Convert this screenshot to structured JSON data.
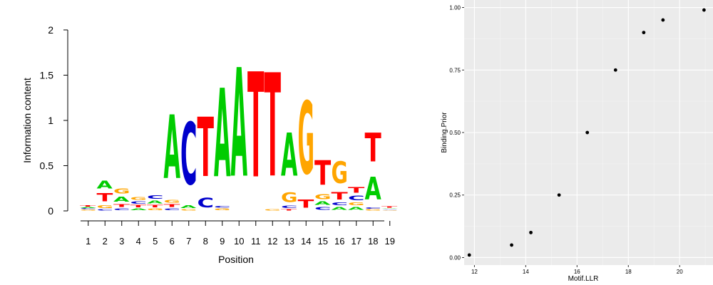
{
  "chart_data": [
    {
      "type": "sequence-logo",
      "xlabel": "Position",
      "ylabel": "Information content",
      "ylim": [
        0,
        2
      ],
      "y_ticks": [
        "0",
        "0.5",
        "1",
        "1.5",
        "2"
      ],
      "positions": [
        "1",
        "2",
        "3",
        "4",
        "5",
        "6",
        "7",
        "8",
        "9",
        "10",
        "11",
        "12",
        "13",
        "14",
        "15",
        "16",
        "17",
        "18",
        "19"
      ],
      "colors": {
        "A": "#00cc00",
        "C": "#0000cc",
        "G": "#ffa500",
        "T": "#ff0000"
      },
      "stacks": [
        [
          {
            "l": "G",
            "v": 0.015
          },
          {
            "l": "C",
            "v": 0.015
          },
          {
            "l": "A",
            "v": 0.015
          },
          {
            "l": "T",
            "v": 0.02
          }
        ],
        [
          {
            "l": "C",
            "v": 0.02
          },
          {
            "l": "G",
            "v": 0.05
          },
          {
            "l": "T",
            "v": 0.15
          },
          {
            "l": "A",
            "v": 0.14
          }
        ],
        [
          {
            "l": "C",
            "v": 0.03
          },
          {
            "l": "T",
            "v": 0.05
          },
          {
            "l": "A",
            "v": 0.09
          },
          {
            "l": "G",
            "v": 0.09
          }
        ],
        [
          {
            "l": "A",
            "v": 0.03
          },
          {
            "l": "T",
            "v": 0.04
          },
          {
            "l": "C",
            "v": 0.04
          },
          {
            "l": "G",
            "v": 0.05
          }
        ],
        [
          {
            "l": "G",
            "v": 0.03
          },
          {
            "l": "T",
            "v": 0.04
          },
          {
            "l": "A",
            "v": 0.05
          },
          {
            "l": "C",
            "v": 0.06
          }
        ],
        [
          {
            "l": "C",
            "v": 0.03
          },
          {
            "l": "T",
            "v": 0.05
          },
          {
            "l": "G",
            "v": 0.05
          },
          {
            "l": "A",
            "v": 1.12
          }
        ],
        [
          {
            "l": "G",
            "v": 0.02
          },
          {
            "l": "A",
            "v": 0.05
          },
          {
            "l": "C",
            "v": 1.1
          }
        ],
        [
          {
            "l": "C",
            "v": 0.17
          },
          {
            "l": "T",
            "v": 1.05
          }
        ],
        [
          {
            "l": "G",
            "v": 0.03
          },
          {
            "l": "C",
            "v": 0.03
          },
          {
            "l": "A",
            "v": 1.56
          }
        ],
        [
          {
            "l": "A",
            "v": 1.92
          }
        ],
        [
          {
            "l": "T",
            "v": 1.85
          }
        ],
        [
          {
            "l": "G",
            "v": 0.02
          },
          {
            "l": "T",
            "v": 1.82
          }
        ],
        [
          {
            "l": "T",
            "v": 0.02
          },
          {
            "l": "C",
            "v": 0.04
          },
          {
            "l": "G",
            "v": 0.17
          },
          {
            "l": "A",
            "v": 0.75
          }
        ],
        [
          {
            "l": "T",
            "v": 0.15
          },
          {
            "l": "G",
            "v": 1.28
          }
        ],
        [
          {
            "l": "C",
            "v": 0.05
          },
          {
            "l": "A",
            "v": 0.06
          },
          {
            "l": "G",
            "v": 0.09
          },
          {
            "l": "T",
            "v": 0.43
          }
        ],
        [
          {
            "l": "A",
            "v": 0.05
          },
          {
            "l": "C",
            "v": 0.05
          },
          {
            "l": "T",
            "v": 0.13
          },
          {
            "l": "G",
            "v": 0.38
          }
        ],
        [
          {
            "l": "A",
            "v": 0.05
          },
          {
            "l": "G",
            "v": 0.05
          },
          {
            "l": "C",
            "v": 0.08
          },
          {
            "l": "T",
            "v": 0.1
          }
        ],
        [
          {
            "l": "G",
            "v": 0.02
          },
          {
            "l": "C",
            "v": 0.02
          },
          {
            "l": "A",
            "v": 0.4
          },
          {
            "l": "T",
            "v": 0.5
          }
        ],
        [
          {
            "l": "G",
            "v": 0.01
          },
          {
            "l": "C",
            "v": 0.01
          },
          {
            "l": "A",
            "v": 0.01
          },
          {
            "l": "T",
            "v": 0.02
          }
        ]
      ]
    },
    {
      "type": "scatter",
      "xlabel": "Motif.LLR",
      "ylabel": "Binding.Prior",
      "xlim": [
        11.6,
        21.3
      ],
      "ylim": [
        -0.03,
        1.03
      ],
      "x_ticks": [
        12,
        14,
        16,
        18,
        20
      ],
      "x_tick_labels": [
        "12",
        "14",
        "16",
        "18",
        "20"
      ],
      "y_ticks": [
        0,
        0.25,
        0.5,
        0.75,
        1
      ],
      "y_tick_labels": [
        "0.00",
        "0.25",
        "0.50",
        "0.75",
        "1.00"
      ],
      "grid": true,
      "panel_background": "#ebebeb",
      "point_color": "#000000",
      "points": [
        {
          "x": 11.8,
          "y": 0.01
        },
        {
          "x": 13.45,
          "y": 0.05
        },
        {
          "x": 14.2,
          "y": 0.1
        },
        {
          "x": 15.3,
          "y": 0.25
        },
        {
          "x": 16.4,
          "y": 0.5
        },
        {
          "x": 17.5,
          "y": 0.75
        },
        {
          "x": 18.6,
          "y": 0.9
        },
        {
          "x": 19.35,
          "y": 0.95
        },
        {
          "x": 20.95,
          "y": 0.99
        }
      ]
    }
  ]
}
